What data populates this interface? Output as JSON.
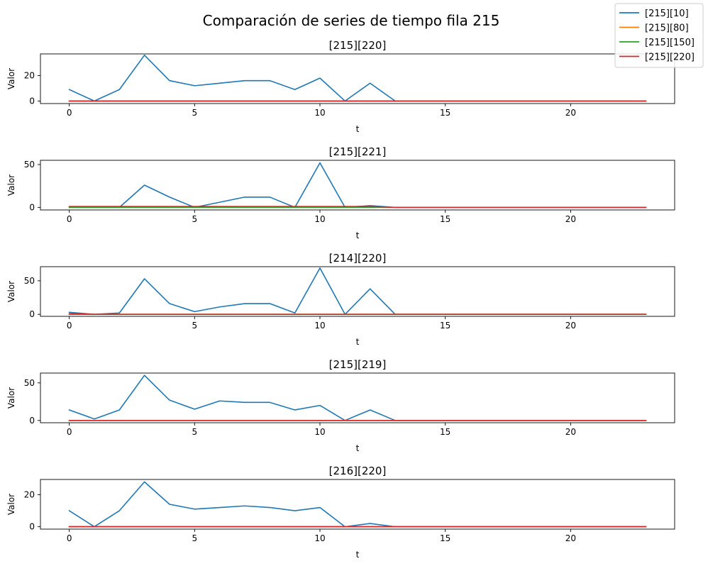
{
  "figure_title": "Comparación de series de tiempo fila 215",
  "legend": {
    "placement": "top-right",
    "entries": [
      {
        "label": "[215][10]",
        "color": "#1f77b4"
      },
      {
        "label": "[215][80]",
        "color": "#ff7f0e"
      },
      {
        "label": "[215][150]",
        "color": "#2ca02c"
      },
      {
        "label": "[215][220]",
        "color": "#d62728"
      }
    ]
  },
  "chart_data": [
    {
      "type": "line",
      "title": "[215][220]",
      "xlabel": "t",
      "ylabel": "Valor",
      "xlim": [
        -1.15,
        24.15
      ],
      "ylim": [
        -2,
        37
      ],
      "xticks": [
        0,
        5,
        10,
        15,
        20
      ],
      "yticks": [
        0,
        20
      ],
      "x": [
        0,
        1,
        2,
        3,
        4,
        5,
        6,
        7,
        8,
        9,
        10,
        11,
        12,
        13,
        14,
        15,
        16,
        17,
        18,
        19,
        20,
        21,
        22,
        23
      ],
      "series": [
        {
          "name": "[215][10]",
          "color": "#1f77b4",
          "values": [
            9,
            0,
            9,
            36,
            16,
            12,
            14,
            16,
            16,
            9,
            18,
            0,
            14,
            0,
            0,
            0,
            0,
            0,
            0,
            0,
            0,
            0,
            0,
            0
          ]
        },
        {
          "name": "[215][80]",
          "color": "#ff7f0e",
          "values": [
            0,
            0,
            0,
            0,
            0,
            0,
            0,
            0,
            0,
            0,
            0,
            0,
            0,
            0,
            0,
            0,
            0,
            0,
            0,
            0,
            0,
            0,
            0,
            0
          ]
        },
        {
          "name": "[215][150]",
          "color": "#2ca02c",
          "values": [
            0,
            0,
            0,
            0,
            0,
            0,
            0,
            0,
            0,
            0,
            0,
            0,
            0,
            0,
            0,
            0,
            0,
            0,
            0,
            0,
            0,
            0,
            0,
            0
          ]
        },
        {
          "name": "[215][220]",
          "color": "#d62728",
          "values": [
            0,
            0,
            0,
            0,
            0,
            0,
            0,
            0,
            0,
            0,
            0,
            0,
            0,
            0,
            0,
            0,
            0,
            0,
            0,
            0,
            0,
            0,
            0,
            0
          ]
        }
      ]
    },
    {
      "type": "line",
      "title": "[215][221]",
      "xlabel": "t",
      "ylabel": "Valor",
      "xlim": [
        -1.15,
        24.15
      ],
      "ylim": [
        -3,
        55
      ],
      "xticks": [
        0,
        5,
        10,
        15,
        20
      ],
      "yticks": [
        0,
        50
      ],
      "x": [
        0,
        1,
        2,
        3,
        4,
        5,
        6,
        7,
        8,
        9,
        10,
        11,
        12,
        13,
        14,
        15,
        16,
        17,
        18,
        19,
        20,
        21,
        22,
        23
      ],
      "series": [
        {
          "name": "[215][10]",
          "color": "#1f77b4",
          "values": [
            0,
            0,
            0,
            26,
            12,
            0,
            6,
            12,
            12,
            0,
            52,
            0,
            2,
            0,
            0,
            0,
            0,
            0,
            0,
            0,
            0,
            0,
            0,
            0
          ]
        },
        {
          "name": "[215][80]",
          "color": "#ff7f0e",
          "values": [
            0,
            0,
            0,
            0,
            0,
            0,
            0,
            0,
            0,
            0,
            0,
            0,
            0,
            0,
            0,
            0,
            0,
            0,
            0,
            0,
            0,
            0,
            0,
            0
          ]
        },
        {
          "name": "[215][150]",
          "color": "#2ca02c",
          "values": [
            0,
            0,
            0,
            0,
            0,
            0,
            0,
            0,
            0,
            0,
            0,
            0,
            0,
            0,
            0,
            0,
            0,
            0,
            0,
            0,
            0,
            0,
            0,
            0
          ]
        },
        {
          "name": "[215][220]",
          "color": "#d62728",
          "values": [
            1,
            1,
            1,
            1,
            1,
            1,
            1,
            1,
            1,
            1,
            1,
            1,
            1,
            0,
            0,
            0,
            0,
            0,
            0,
            0,
            0,
            0,
            0,
            0
          ]
        }
      ]
    },
    {
      "type": "line",
      "title": "[214][220]",
      "xlabel": "t",
      "ylabel": "Valor",
      "xlim": [
        -1.15,
        24.15
      ],
      "ylim": [
        -3,
        71
      ],
      "xticks": [
        0,
        5,
        10,
        15,
        20
      ],
      "yticks": [
        0,
        50
      ],
      "x": [
        0,
        1,
        2,
        3,
        4,
        5,
        6,
        7,
        8,
        9,
        10,
        11,
        12,
        13,
        14,
        15,
        16,
        17,
        18,
        19,
        20,
        21,
        22,
        23
      ],
      "series": [
        {
          "name": "[215][10]",
          "color": "#1f77b4",
          "values": [
            3,
            0,
            2,
            53,
            16,
            4,
            11,
            16,
            16,
            2,
            69,
            0,
            38,
            0,
            0,
            0,
            0,
            0,
            0,
            0,
            0,
            0,
            0,
            0
          ]
        },
        {
          "name": "[215][80]",
          "color": "#ff7f0e",
          "values": [
            0,
            0,
            0,
            0,
            0,
            0,
            0,
            0,
            0,
            0,
            0,
            0,
            0,
            0,
            0,
            0,
            0,
            0,
            0,
            0,
            0,
            0,
            0,
            0
          ]
        },
        {
          "name": "[215][150]",
          "color": "#2ca02c",
          "values": [
            0,
            0,
            0,
            0,
            0,
            0,
            0,
            0,
            0,
            0,
            0,
            0,
            0,
            0,
            0,
            0,
            0,
            0,
            0,
            0,
            0,
            0,
            0,
            0
          ]
        },
        {
          "name": "[215][220]",
          "color": "#d62728",
          "values": [
            1,
            0,
            0,
            0,
            0,
            0,
            0,
            0,
            0,
            0,
            0,
            0,
            0,
            0,
            0,
            0,
            0,
            0,
            0,
            0,
            0,
            0,
            0,
            0
          ]
        }
      ]
    },
    {
      "type": "line",
      "title": "[215][219]",
      "xlabel": "t",
      "ylabel": "Valor",
      "xlim": [
        -1.15,
        24.15
      ],
      "ylim": [
        -3,
        63
      ],
      "xticks": [
        0,
        5,
        10,
        15,
        20
      ],
      "yticks": [
        0,
        50
      ],
      "x": [
        0,
        1,
        2,
        3,
        4,
        5,
        6,
        7,
        8,
        9,
        10,
        11,
        12,
        13,
        14,
        15,
        16,
        17,
        18,
        19,
        20,
        21,
        22,
        23
      ],
      "series": [
        {
          "name": "[215][10]",
          "color": "#1f77b4",
          "values": [
            14,
            2,
            14,
            60,
            27,
            15,
            26,
            24,
            24,
            14,
            20,
            0,
            14,
            0,
            0,
            0,
            0,
            0,
            0,
            0,
            0,
            0,
            0,
            0
          ]
        },
        {
          "name": "[215][80]",
          "color": "#ff7f0e",
          "values": [
            0,
            0,
            0,
            0,
            0,
            0,
            0,
            0,
            0,
            0,
            0,
            0,
            0,
            0,
            0,
            0,
            0,
            0,
            0,
            0,
            0,
            0,
            0,
            0
          ]
        },
        {
          "name": "[215][150]",
          "color": "#2ca02c",
          "values": [
            0,
            0,
            0,
            0,
            0,
            0,
            0,
            0,
            0,
            0,
            0,
            0,
            0,
            0,
            0,
            0,
            0,
            0,
            0,
            0,
            0,
            0,
            0,
            0
          ]
        },
        {
          "name": "[215][220]",
          "color": "#d62728",
          "values": [
            0,
            0,
            0,
            0,
            0,
            0,
            0,
            0,
            0,
            0,
            0,
            0,
            0,
            0,
            0,
            0,
            0,
            0,
            0,
            0,
            0,
            0,
            0,
            0
          ]
        }
      ]
    },
    {
      "type": "line",
      "title": "[216][220]",
      "xlabel": "t",
      "ylabel": "Valor",
      "xlim": [
        -1.15,
        24.15
      ],
      "ylim": [
        -1.5,
        29.5
      ],
      "xticks": [
        0,
        5,
        10,
        15,
        20
      ],
      "yticks": [
        0,
        20
      ],
      "x": [
        0,
        1,
        2,
        3,
        4,
        5,
        6,
        7,
        8,
        9,
        10,
        11,
        12,
        13,
        14,
        15,
        16,
        17,
        18,
        19,
        20,
        21,
        22,
        23
      ],
      "series": [
        {
          "name": "[215][10]",
          "color": "#1f77b4",
          "values": [
            10,
            0,
            10,
            28,
            14,
            11,
            12,
            13,
            12,
            10,
            12,
            0,
            2,
            0,
            0,
            0,
            0,
            0,
            0,
            0,
            0,
            0,
            0,
            0
          ]
        },
        {
          "name": "[215][80]",
          "color": "#ff7f0e",
          "values": [
            0,
            0,
            0,
            0,
            0,
            0,
            0,
            0,
            0,
            0,
            0,
            0,
            0,
            0,
            0,
            0,
            0,
            0,
            0,
            0,
            0,
            0,
            0,
            0
          ]
        },
        {
          "name": "[215][150]",
          "color": "#2ca02c",
          "values": [
            0,
            0,
            0,
            0,
            0,
            0,
            0,
            0,
            0,
            0,
            0,
            0,
            0,
            0,
            0,
            0,
            0,
            0,
            0,
            0,
            0,
            0,
            0,
            0
          ]
        },
        {
          "name": "[215][220]",
          "color": "#d62728",
          "values": [
            0,
            0,
            0,
            0,
            0,
            0,
            0,
            0,
            0,
            0,
            0,
            0,
            0,
            0,
            0,
            0,
            0,
            0,
            0,
            0,
            0,
            0,
            0,
            0
          ]
        }
      ]
    }
  ]
}
